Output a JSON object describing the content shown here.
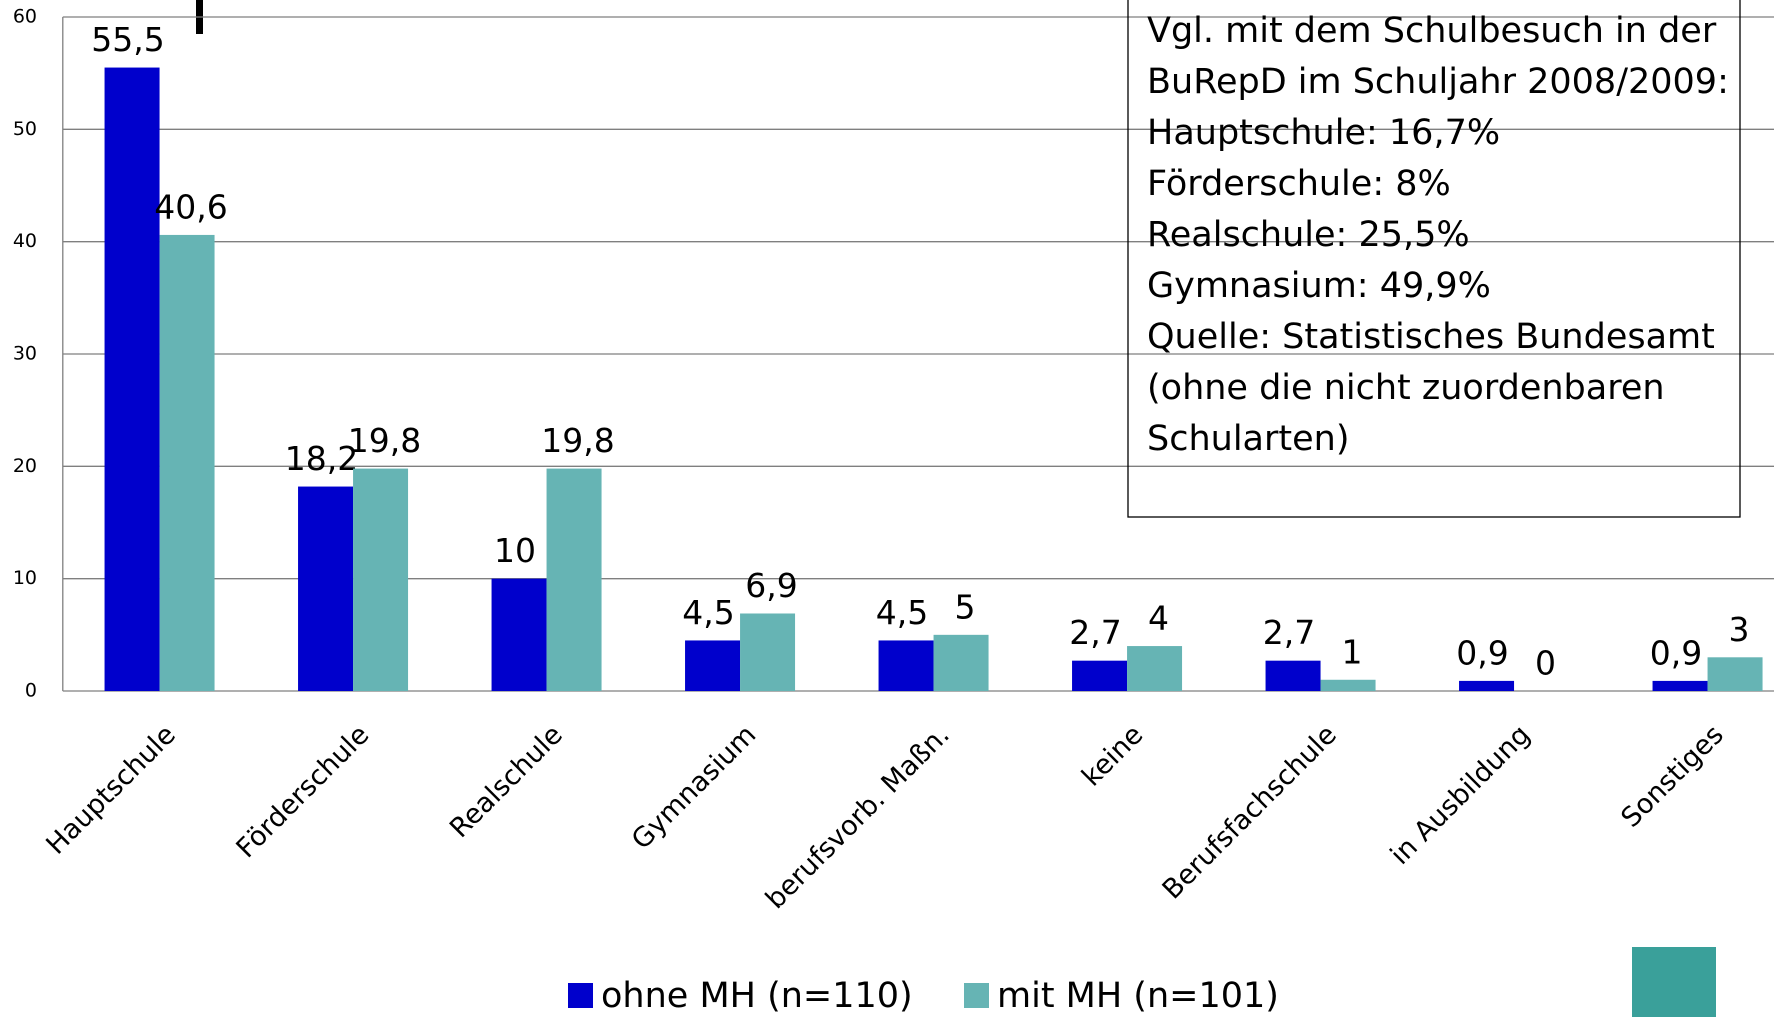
{
  "chart_data": {
    "type": "bar",
    "categories": [
      "Hauptschule",
      "Förderschule",
      "Realschule",
      "Gymnasium",
      "berufsvorb. Maßn.",
      "keine",
      "Berufsfachschule",
      "in Ausbildung",
      "Sonstiges"
    ],
    "series": [
      {
        "name": "ohne MH (n=110)",
        "color": "#0000cc",
        "values": [
          55.5,
          18.2,
          10,
          4.5,
          4.5,
          2.7,
          2.7,
          0.9,
          0.9
        ],
        "value_labels": [
          "55,5",
          "18,2",
          "10",
          "4,5",
          "4,5",
          "2,7",
          "2,7",
          "0,9",
          "0,9"
        ]
      },
      {
        "name": "mit MH (n=101)",
        "color": "#66b4b4",
        "values": [
          40.6,
          19.8,
          19.8,
          6.9,
          5,
          4,
          1,
          0,
          3
        ],
        "value_labels": [
          "40,6",
          "19,8",
          "19,8",
          "6,9",
          "5",
          "4",
          "1",
          "0",
          "3"
        ]
      }
    ],
    "ylim": [
      0,
      60
    ],
    "yticks": [
      0,
      10,
      20,
      30,
      40,
      50,
      60
    ],
    "grid": true,
    "legend": "bottom",
    "annotation": [
      "Vgl. mit dem Schulbesuch in der",
      "BuRepD im Schuljahr 2008/2009:",
      "Hauptschule: 16,7%",
      "Förderschule: 8%",
      "Realschule: 25,5%",
      "Gymnasium: 49,9%",
      "Quelle: Statistisches Bundesamt",
      "(ohne die nicht zuordenbaren",
      "Schularten)"
    ]
  }
}
